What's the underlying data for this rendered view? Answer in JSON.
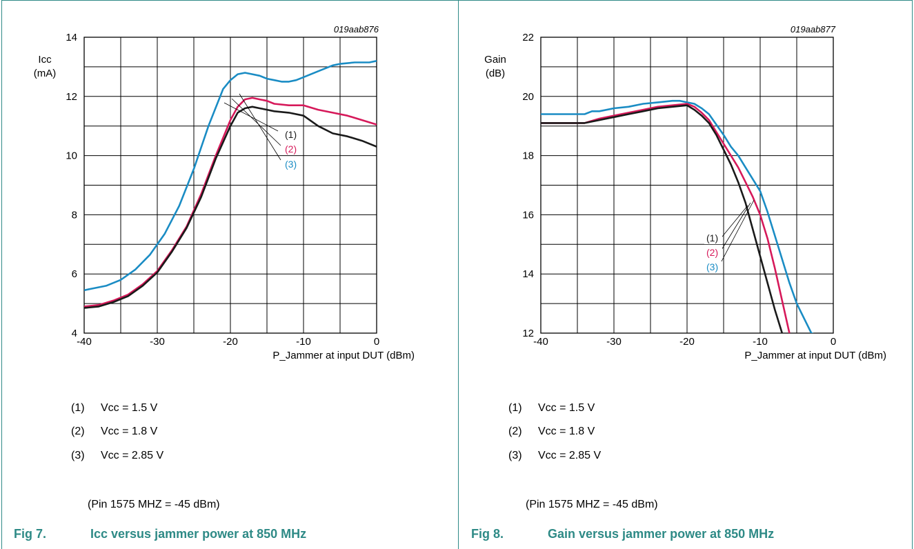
{
  "figures": [
    {
      "id": "fig7",
      "label": "Fig 7.",
      "title": "Icc versus jammer power at 850 MHz",
      "notes": [
        {
          "num": "(1)",
          "text": "Vcc = 1.5 V"
        },
        {
          "num": "(2)",
          "text": "Vcc = 1.8 V"
        },
        {
          "num": "(3)",
          "text": "Vcc = 2.85 V"
        }
      ],
      "pin_note": "(Pin 1575 MHZ = -45 dBm)"
    },
    {
      "id": "fig8",
      "label": "Fig 8.",
      "title": "Gain versus jammer power at 850 MHz",
      "notes": [
        {
          "num": "(1)",
          "text": "Vcc = 1.5 V"
        },
        {
          "num": "(2)",
          "text": "Vcc = 1.8 V"
        },
        {
          "num": "(3)",
          "text": "Vcc = 2.85 V"
        }
      ],
      "pin_note": "(Pin 1575 MHZ = -45 dBm)"
    }
  ],
  "colors": {
    "frame": "#2e8a86",
    "series1": "#1a1a1a",
    "series2": "#d6195a",
    "series3": "#1a8cc4",
    "grid": "#000000"
  },
  "chart_data": [
    {
      "type": "line",
      "code": "019aab876",
      "xlabel": "P_Jammer at input DUT (dBm)",
      "ylabel": "Icc\n(mA)",
      "ylabel_lines": [
        "Icc",
        "(mA)"
      ],
      "xlim": [
        -40,
        0
      ],
      "ylim": [
        4,
        14
      ],
      "xticks": [
        -40,
        -30,
        -20,
        -10,
        0
      ],
      "yticks": [
        4,
        6,
        8,
        10,
        12,
        14
      ],
      "grid": true,
      "series": [
        {
          "name": "(1)",
          "x": [
            -40,
            -38,
            -36,
            -34,
            -32,
            -30,
            -28,
            -26,
            -24,
            -22,
            -20,
            -19,
            -18,
            -17,
            -16,
            -15,
            -14,
            -12,
            -10,
            -8,
            -6,
            -4,
            -2,
            0
          ],
          "y": [
            4.85,
            4.9,
            5.05,
            5.25,
            5.6,
            6.05,
            6.75,
            7.55,
            8.6,
            9.9,
            11.0,
            11.45,
            11.6,
            11.65,
            11.6,
            11.55,
            11.5,
            11.45,
            11.35,
            11.0,
            10.75,
            10.65,
            10.5,
            10.3
          ]
        },
        {
          "name": "(2)",
          "x": [
            -40,
            -38,
            -36,
            -34,
            -32,
            -30,
            -28,
            -26,
            -24,
            -22,
            -20,
            -19,
            -18,
            -17,
            -16,
            -15,
            -14,
            -12,
            -10,
            -8,
            -6,
            -4,
            -2,
            0
          ],
          "y": [
            4.9,
            4.95,
            5.1,
            5.3,
            5.65,
            6.1,
            6.8,
            7.6,
            8.7,
            10.0,
            11.2,
            11.65,
            11.9,
            11.95,
            11.9,
            11.85,
            11.75,
            11.7,
            11.7,
            11.55,
            11.45,
            11.35,
            11.2,
            11.05
          ]
        },
        {
          "name": "(3)",
          "x": [
            -40,
            -39,
            -37,
            -35,
            -33,
            -31,
            -29,
            -27,
            -25,
            -23,
            -21,
            -20,
            -19,
            -18,
            -17,
            -16,
            -15,
            -14,
            -13,
            -12,
            -11,
            -10,
            -8,
            -6,
            -5,
            -3,
            -1,
            0
          ],
          "y": [
            5.45,
            5.5,
            5.6,
            5.8,
            6.15,
            6.65,
            7.35,
            8.3,
            9.55,
            11.0,
            12.25,
            12.55,
            12.75,
            12.8,
            12.75,
            12.7,
            12.6,
            12.55,
            12.5,
            12.5,
            12.55,
            12.65,
            12.85,
            13.05,
            13.1,
            13.15,
            13.15,
            13.2
          ]
        }
      ],
      "annotations": [
        "(1)",
        "(2)",
        "(3)"
      ]
    },
    {
      "type": "line",
      "code": "019aab877",
      "xlabel": "P_Jammer at input DUT (dBm)",
      "ylabel": "Gain\n(dB)",
      "ylabel_lines": [
        "Gain",
        "(dB)"
      ],
      "xlim": [
        -40,
        0
      ],
      "ylim": [
        12,
        22
      ],
      "xticks": [
        -40,
        -30,
        -20,
        -10,
        0
      ],
      "yticks": [
        12,
        14,
        16,
        18,
        20,
        22
      ],
      "grid": true,
      "series": [
        {
          "name": "(1)",
          "x": [
            -40,
            -38,
            -36,
            -34,
            -32,
            -30,
            -28,
            -26,
            -24,
            -22,
            -20,
            -19,
            -18,
            -17,
            -16,
            -15,
            -14,
            -13,
            -12,
            -11,
            -10,
            -9,
            -8,
            -7
          ],
          "y": [
            19.1,
            19.1,
            19.1,
            19.1,
            19.2,
            19.3,
            19.4,
            19.5,
            19.6,
            19.65,
            19.7,
            19.55,
            19.35,
            19.1,
            18.7,
            18.2,
            17.7,
            17.1,
            16.4,
            15.5,
            14.6,
            13.7,
            12.8,
            12.0
          ]
        },
        {
          "name": "(2)",
          "x": [
            -40,
            -38,
            -36,
            -34,
            -32,
            -30,
            -28,
            -26,
            -24,
            -22,
            -20,
            -19,
            -18,
            -17,
            -16,
            -15,
            -14,
            -13,
            -12,
            -11,
            -10,
            -9,
            -8,
            -7,
            -6
          ],
          "y": [
            19.1,
            19.1,
            19.1,
            19.1,
            19.25,
            19.35,
            19.45,
            19.55,
            19.65,
            19.7,
            19.75,
            19.65,
            19.45,
            19.2,
            18.8,
            18.4,
            18.0,
            17.6,
            17.1,
            16.6,
            16.0,
            15.2,
            14.2,
            13.1,
            12.0
          ]
        },
        {
          "name": "(3)",
          "x": [
            -40,
            -38,
            -36,
            -34,
            -33,
            -32,
            -30,
            -28,
            -26,
            -24,
            -22,
            -21,
            -20,
            -19,
            -18,
            -17,
            -16,
            -15,
            -14,
            -13,
            -12,
            -11,
            -10,
            -9,
            -8,
            -7,
            -6,
            -5,
            -4,
            -3,
            -2
          ],
          "y": [
            19.4,
            19.4,
            19.4,
            19.4,
            19.5,
            19.5,
            19.6,
            19.65,
            19.75,
            19.8,
            19.85,
            19.85,
            19.8,
            19.75,
            19.6,
            19.4,
            19.05,
            18.7,
            18.3,
            18.0,
            17.6,
            17.2,
            16.8,
            16.1,
            15.3,
            14.5,
            13.7,
            13.0,
            12.5,
            12.0,
            11.9
          ]
        }
      ],
      "annotations": [
        "(1)",
        "(2)",
        "(3)"
      ]
    }
  ]
}
